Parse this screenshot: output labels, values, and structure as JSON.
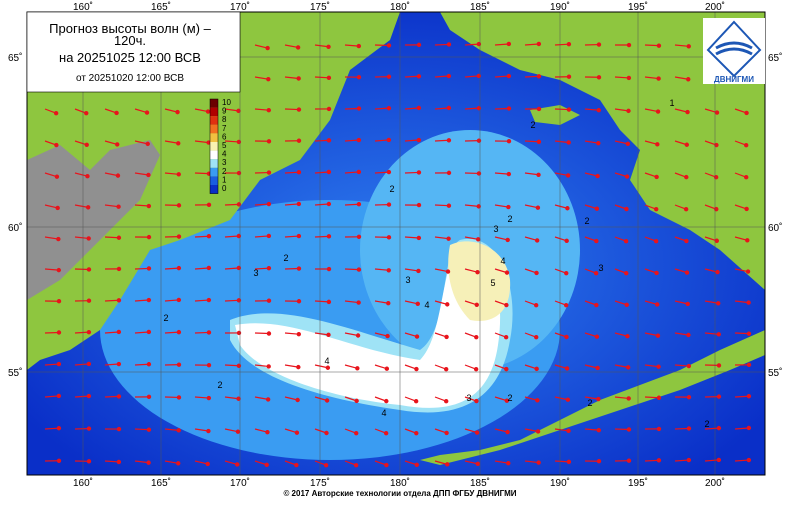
{
  "header": {
    "title_lines": [
      "Прогноз высоты волн (м) –",
      "120ч.",
      "на 20251025 12:00 ВСВ"
    ],
    "issued": "от 20251020 12:00 ВСВ"
  },
  "colorbar": {
    "ticks": [
      "10",
      "9",
      "8",
      "7",
      "6",
      "5",
      "4",
      "3",
      "2",
      "1",
      "0"
    ]
  },
  "longitude_labels": [
    "160˚",
    "165˚",
    "170˚",
    "175˚",
    "180˚",
    "185˚",
    "190˚",
    "195˚",
    "200˚"
  ],
  "latitude_labels": [
    "65˚",
    "60˚",
    "55˚"
  ],
  "contour_labels": [
    "1",
    "2",
    "2",
    "2",
    "3",
    "3",
    "3",
    "2",
    "5",
    "4",
    "4",
    "4",
    "4",
    "3",
    "2",
    "2",
    "3",
    "2",
    "2",
    "2",
    "2"
  ],
  "logo": "ДВНИГМИ",
  "footer": "© 2017 Авторские технологии отдела ДПП ФГБУ ДВНИГМИ"
}
